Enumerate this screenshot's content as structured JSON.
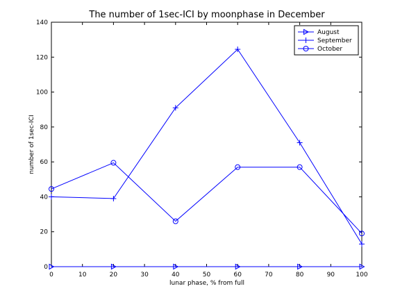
{
  "chart_data": {
    "type": "line",
    "title": "The number of 1sec-ICI by moonphase in December",
    "xlabel": "lunar phase, % from full",
    "ylabel": "number of 1sec-ICI",
    "xlim": [
      0,
      100
    ],
    "ylim": [
      0,
      140
    ],
    "xticks": [
      0,
      10,
      20,
      30,
      40,
      50,
      60,
      70,
      80,
      90,
      100
    ],
    "yticks": [
      0,
      20,
      40,
      60,
      80,
      100,
      120,
      140
    ],
    "grid": false,
    "legend_position": "top-right",
    "line_color": "#0000ff",
    "series": [
      {
        "name": "August",
        "marker": "triangle-right",
        "x": [
          0,
          20,
          40,
          60,
          80,
          100
        ],
        "y": [
          0,
          0,
          0,
          0,
          0,
          0
        ]
      },
      {
        "name": "September",
        "marker": "plus",
        "x": [
          0,
          20,
          40,
          60,
          80,
          100
        ],
        "y": [
          40,
          39,
          91,
          124.5,
          71,
          13
        ]
      },
      {
        "name": "October",
        "marker": "circle",
        "x": [
          0,
          20,
          40,
          60,
          80,
          100
        ],
        "y": [
          44.5,
          59.5,
          26,
          57,
          57,
          19
        ]
      }
    ]
  }
}
